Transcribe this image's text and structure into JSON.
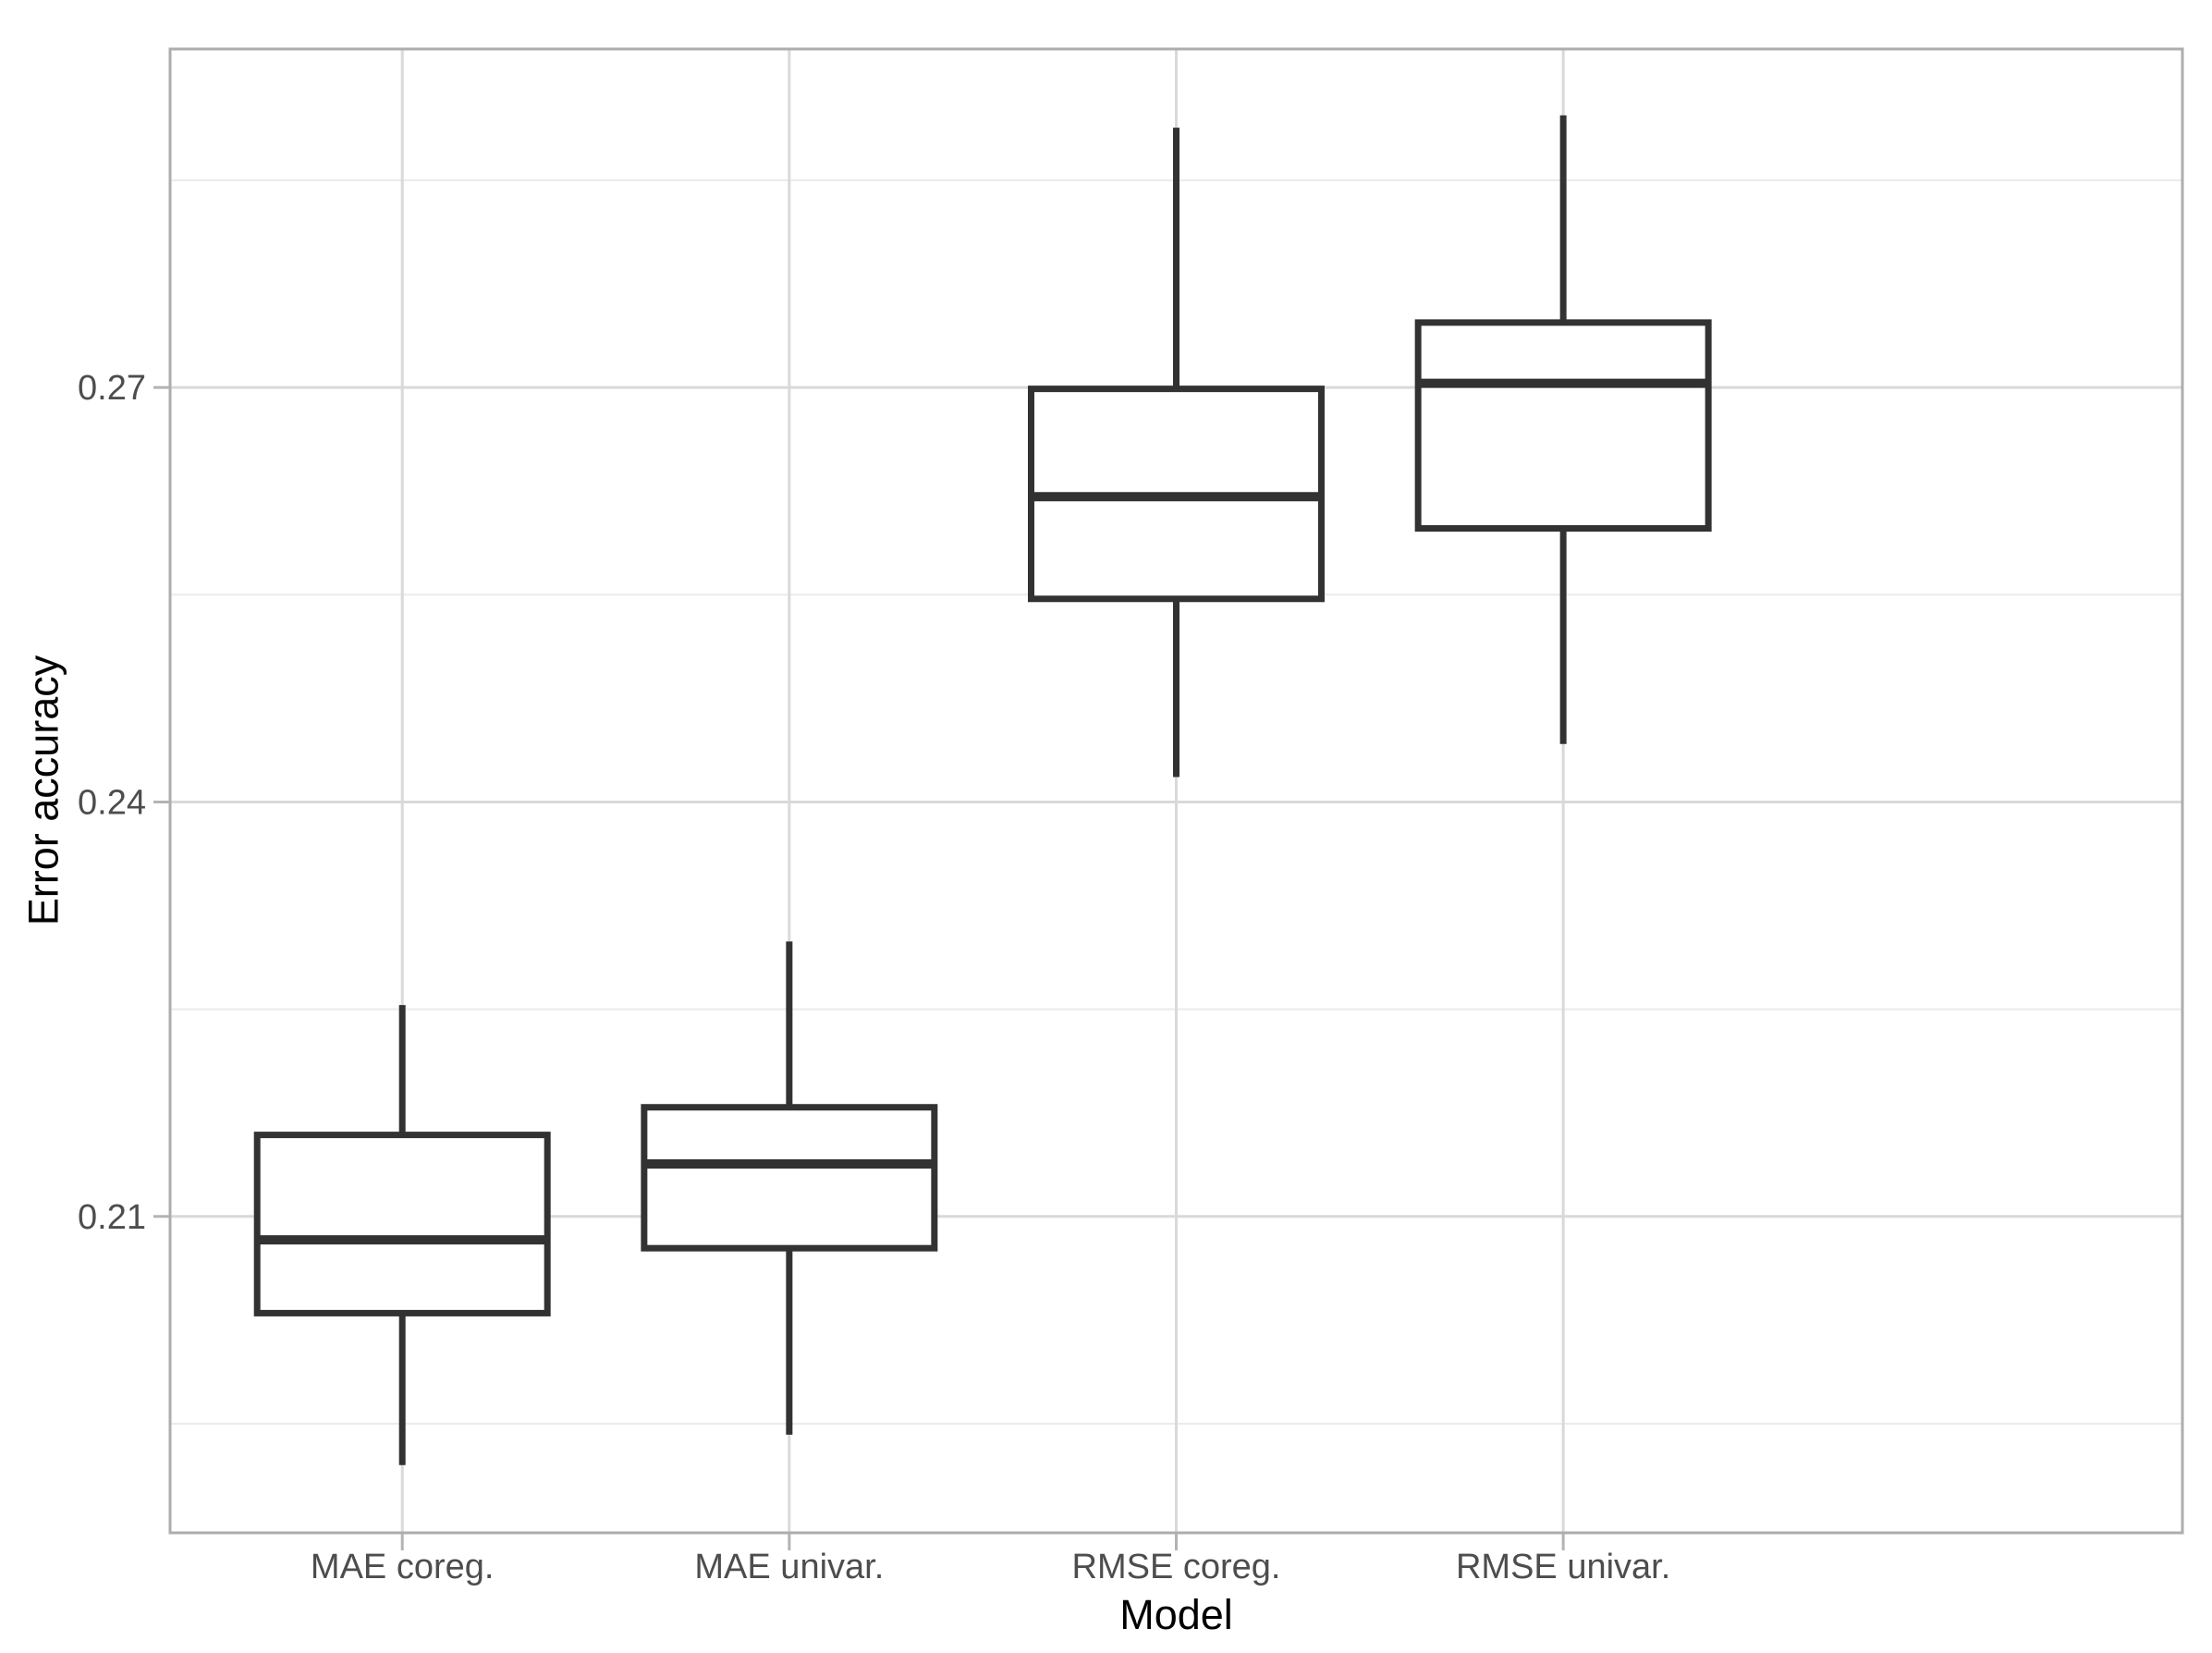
{
  "chart_data": {
    "type": "boxplot",
    "title": "",
    "xlabel": "Model",
    "ylabel": "Error accuracy",
    "categories": [
      "MAE coreg.",
      "MAE univar.",
      "RMSE coreg.",
      "RMSE univar."
    ],
    "series": [
      {
        "name": "MAE coreg.",
        "whisker_low": 0.192,
        "q1": 0.203,
        "median": 0.2083,
        "q3": 0.2159,
        "whisker_high": 0.2253
      },
      {
        "name": "MAE univar.",
        "whisker_low": 0.1942,
        "q1": 0.2077,
        "median": 0.2138,
        "q3": 0.2179,
        "whisker_high": 0.2299
      },
      {
        "name": "RMSE coreg.",
        "whisker_low": 0.2418,
        "q1": 0.2547,
        "median": 0.2621,
        "q3": 0.2699,
        "whisker_high": 0.2888
      },
      {
        "name": "RMSE univar.",
        "whisker_low": 0.2442,
        "q1": 0.2598,
        "median": 0.2703,
        "q3": 0.2747,
        "whisker_high": 0.2897
      }
    ],
    "ylim": [
      0.1871,
      0.2945
    ],
    "y_major_ticks": [
      0.21,
      0.24,
      0.27
    ],
    "y_tick_labels": [
      "0.21",
      "0.24",
      "0.27"
    ],
    "y_minor_gridlines": [
      0.195,
      0.225,
      0.255,
      0.285
    ],
    "grid": "on",
    "legend": "none"
  },
  "style": {
    "background": "#ffffff",
    "panel_border": "#adadad",
    "grid_major": "#d9d9d9",
    "grid_minor": "#ebebeb",
    "tick_mark": "#b3b3b3",
    "tick_label": "#4d4d4d",
    "axis_title": "#000000",
    "box_stroke": "#323232",
    "box_fill": "#ffffff"
  }
}
